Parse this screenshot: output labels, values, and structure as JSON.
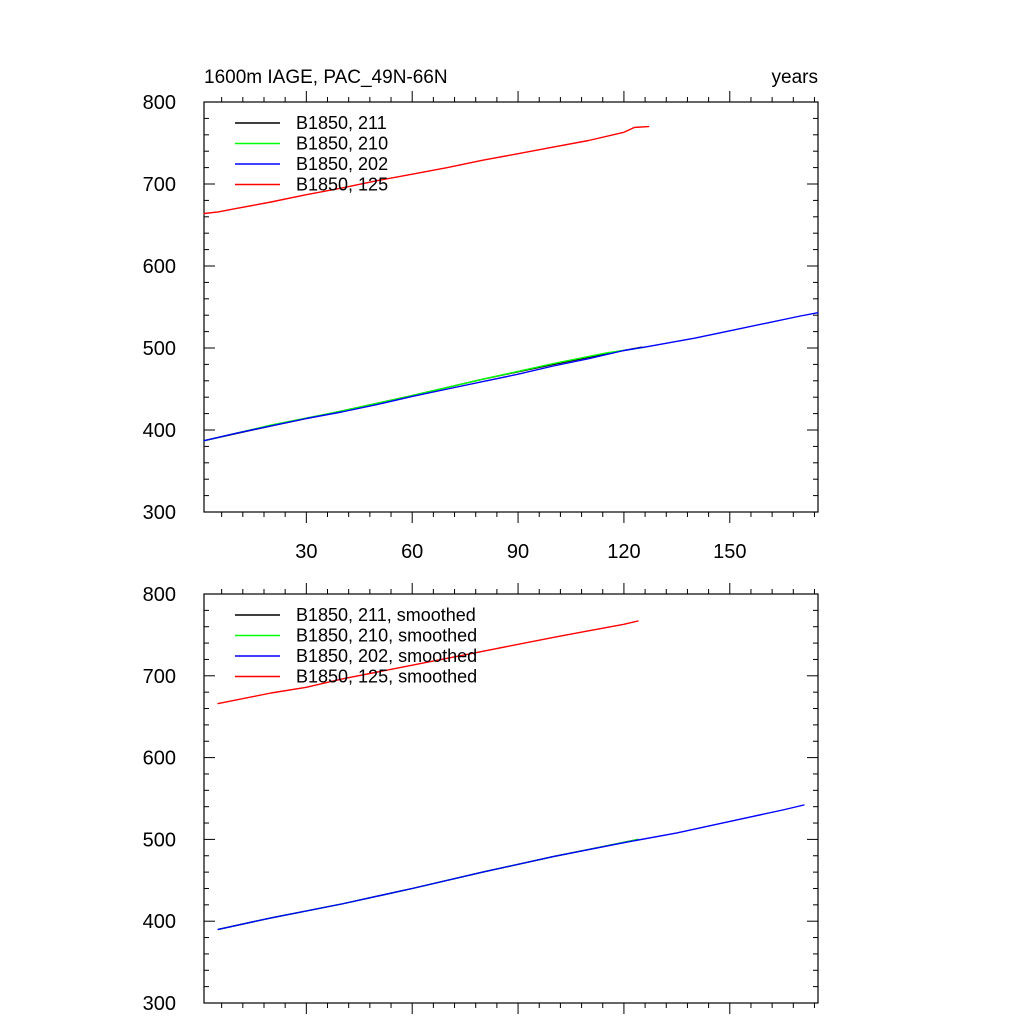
{
  "chart_data": [
    {
      "type": "line",
      "title": "1600m IAGE, PAC_49N-66N",
      "xlabel": "years",
      "ylabel": "",
      "xlim": [
        1,
        175
      ],
      "ylim": [
        300,
        800
      ],
      "x_ticks": [
        30,
        60,
        90,
        120,
        150
      ],
      "x_tick_labels": [
        "30",
        "60",
        "90",
        "120",
        "150"
      ],
      "y_ticks": [
        300,
        400,
        500,
        600,
        700,
        800
      ],
      "y_tick_labels": [
        "300",
        "400",
        "500",
        "600",
        "700",
        "800"
      ],
      "grid": false,
      "legend_position": "top-left",
      "series": [
        {
          "name": "B1850, 211",
          "color": "#000000",
          "x": [
            1,
            20,
            40,
            60,
            80,
            100,
            115,
            125
          ],
          "y": [
            387,
            405,
            423,
            442,
            462,
            480,
            493,
            501
          ]
        },
        {
          "name": "B1850, 210",
          "color": "#00ff00",
          "x": [
            1,
            20,
            40,
            60,
            80,
            100,
            115,
            126
          ],
          "y": [
            387,
            406,
            423,
            442,
            462,
            481,
            494,
            501
          ]
        },
        {
          "name": "B1850, 202",
          "color": "#0000ff",
          "x": [
            1,
            10,
            20,
            30,
            40,
            50,
            60,
            70,
            80,
            90,
            100,
            110,
            120,
            127,
            140,
            150,
            160,
            170,
            175
          ],
          "y": [
            387,
            396,
            405,
            414,
            422,
            431,
            441,
            450,
            459,
            468,
            478,
            487,
            497,
            502,
            512,
            521,
            530,
            539,
            543
          ]
        },
        {
          "name": "B1850, 125",
          "color": "#ff0000",
          "x": [
            1,
            5,
            10,
            20,
            30,
            40,
            50,
            60,
            70,
            80,
            90,
            100,
            110,
            120,
            123,
            127
          ],
          "y": [
            664,
            666,
            670,
            678,
            687,
            695,
            704,
            712,
            720,
            729,
            737,
            745,
            753,
            763,
            769,
            770
          ]
        }
      ]
    },
    {
      "type": "line",
      "title": "",
      "xlabel": "",
      "ylabel": "",
      "xlim": [
        1,
        175
      ],
      "ylim": [
        300,
        800
      ],
      "x_ticks": [
        30,
        60,
        90,
        120,
        150
      ],
      "x_tick_labels": [],
      "y_ticks": [
        300,
        400,
        500,
        600,
        700,
        800
      ],
      "y_tick_labels": [
        "300",
        "400",
        "500",
        "600",
        "700",
        "800"
      ],
      "grid": false,
      "legend_position": "top-left",
      "series": [
        {
          "name": "B1850, 211, smoothed",
          "color": "#000000",
          "x": [
            5,
            20,
            40,
            60,
            80,
            100,
            115,
            124
          ],
          "y": [
            390,
            404,
            421,
            440,
            460,
            479,
            492,
            500
          ]
        },
        {
          "name": "B1850, 210, smoothed",
          "color": "#00ff00",
          "x": [
            5,
            20,
            40,
            60,
            80,
            100,
            115,
            124
          ],
          "y": [
            390,
            404,
            421,
            440,
            460,
            479,
            492,
            500
          ]
        },
        {
          "name": "B1850, 202, smoothed",
          "color": "#0000ff",
          "x": [
            5,
            20,
            40,
            60,
            80,
            100,
            120,
            135,
            150,
            165,
            171
          ],
          "y": [
            390,
            404,
            421,
            440,
            460,
            479,
            496,
            508,
            522,
            536,
            542
          ]
        },
        {
          "name": "B1850, 125, smoothed",
          "color": "#ff0000",
          "x": [
            5,
            20,
            30,
            40,
            60,
            80,
            100,
            110,
            120,
            124
          ],
          "y": [
            666,
            679,
            686,
            696,
            713,
            730,
            747,
            755,
            763,
            767
          ]
        }
      ]
    }
  ]
}
